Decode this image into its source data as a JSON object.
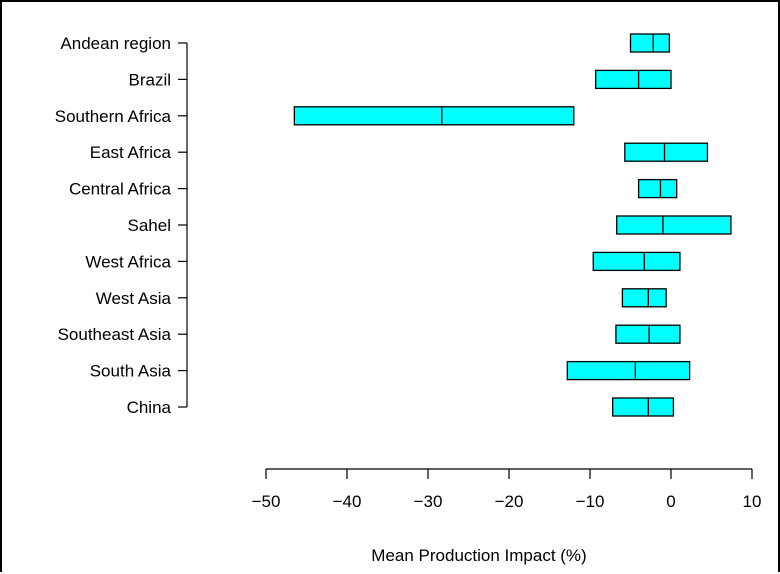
{
  "chart_data": {
    "type": "box",
    "title": "",
    "xlabel": "Mean Production Impact (%)",
    "ylabel": "",
    "xlim": [
      -50,
      10
    ],
    "x_ticks": [
      "−50",
      "−40",
      "−30",
      "−20",
      "−10",
      "0",
      "10"
    ],
    "x_tick_values": [
      -50,
      -40,
      -30,
      -20,
      -10,
      0,
      10
    ],
    "grid": false,
    "box_fill": "#00ffff",
    "box_stroke": "#000000",
    "categories": [
      "Andean region",
      "Brazil",
      "Southern Africa",
      "East Africa",
      "Central Africa",
      "Sahel",
      "West Africa",
      "West Asia",
      "Southeast Asia",
      "South Asia",
      "China"
    ],
    "series": [
      {
        "category": "Andean region",
        "low": -5.0,
        "median": -2.2,
        "high": -0.2
      },
      {
        "category": "Brazil",
        "low": -9.3,
        "median": -4.0,
        "high": 0.0
      },
      {
        "category": "Southern Africa",
        "low": -46.5,
        "median": -28.3,
        "high": -12.0
      },
      {
        "category": "East Africa",
        "low": -5.7,
        "median": -0.8,
        "high": 4.5
      },
      {
        "category": "Central Africa",
        "low": -4.0,
        "median": -1.3,
        "high": 0.7
      },
      {
        "category": "Sahel",
        "low": -6.7,
        "median": -1.0,
        "high": 7.4
      },
      {
        "category": "West Africa",
        "low": -9.6,
        "median": -3.3,
        "high": 1.1
      },
      {
        "category": "West Asia",
        "low": -6.0,
        "median": -2.8,
        "high": -0.6
      },
      {
        "category": "Southeast Asia",
        "low": -6.8,
        "median": -2.7,
        "high": 1.1
      },
      {
        "category": "South Asia",
        "low": -12.8,
        "median": -4.4,
        "high": 2.3
      },
      {
        "category": "China",
        "low": -7.2,
        "median": -2.8,
        "high": 0.3
      }
    ]
  }
}
